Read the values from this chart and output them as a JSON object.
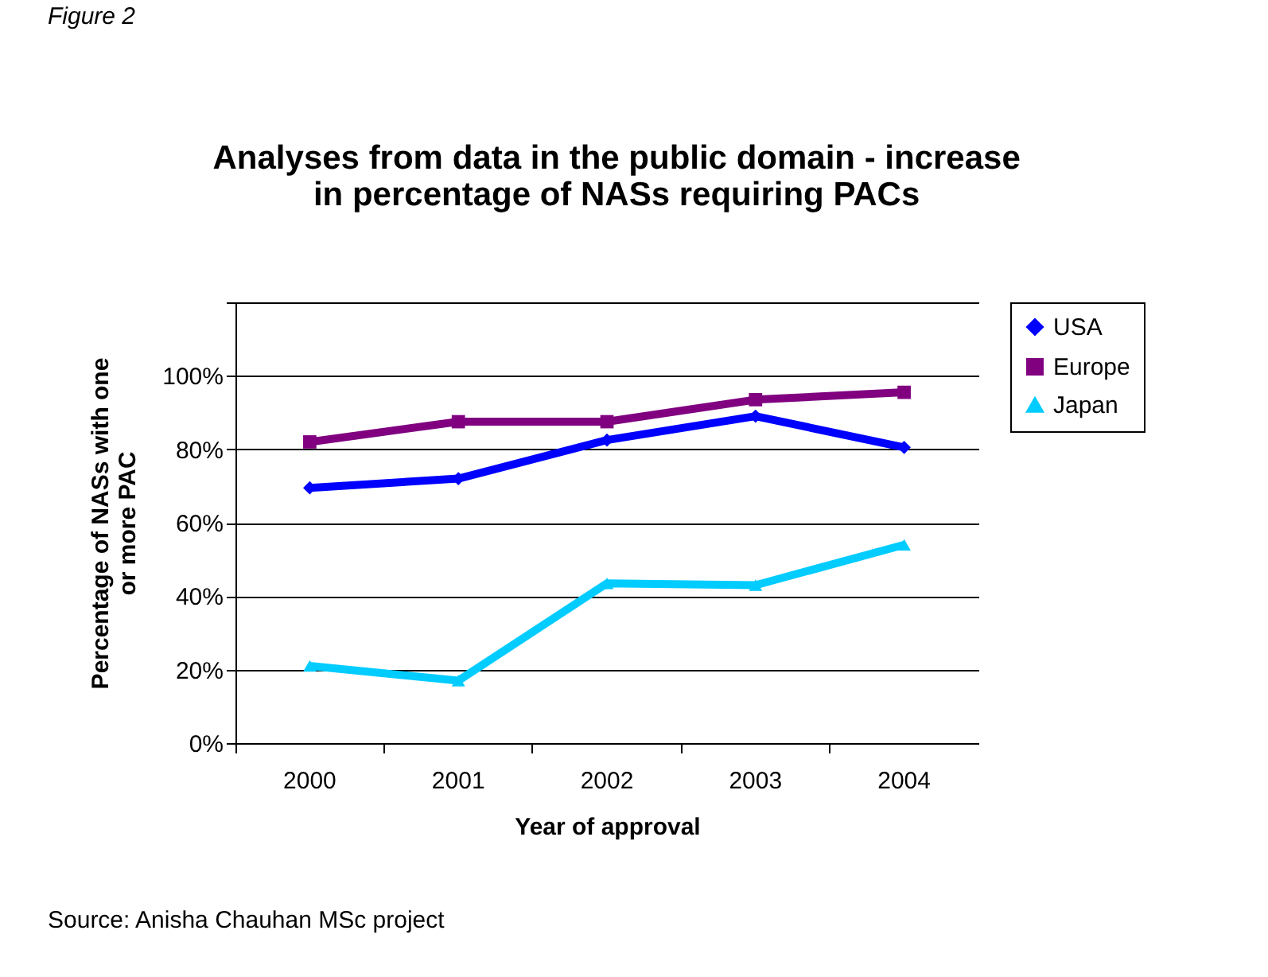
{
  "chart_data": {
    "type": "line",
    "title": "Analyses from data in the public domain - increase in percentage of NASs requiring PACs",
    "xlabel": "Year of approval",
    "ylabel": "Percentage of NASs with one or more PAC",
    "annotations": [
      "Figure 2",
      "Source: Anisha Chauhan MSc project"
    ],
    "categories": [
      "2000",
      "2001",
      "2002",
      "2003",
      "2004"
    ],
    "series": [
      {
        "name": "USA",
        "color": "#0000ff",
        "marker": "diamond",
        "values": [
          69.5,
          72,
          82.5,
          89,
          80.5
        ]
      },
      {
        "name": "Europe",
        "color": "#800080",
        "marker": "square",
        "values": [
          82,
          87.5,
          87.5,
          93.5,
          95.5
        ]
      },
      {
        "name": "Japan",
        "color": "#00ccff",
        "marker": "triangle",
        "values": [
          21,
          17,
          43.5,
          43,
          54
        ]
      }
    ],
    "ylim": [
      0,
      120
    ],
    "yticks": [
      {
        "value": 0,
        "label": "0%"
      },
      {
        "value": 20,
        "label": "20%"
      },
      {
        "value": 40,
        "label": "40%"
      },
      {
        "value": 60,
        "label": "60%"
      },
      {
        "value": 80,
        "label": "80%"
      },
      {
        "value": 100,
        "label": "100%"
      },
      {
        "value": 120,
        "label": null
      }
    ],
    "grid": "y",
    "legend": "right",
    "line_style": "solid"
  }
}
